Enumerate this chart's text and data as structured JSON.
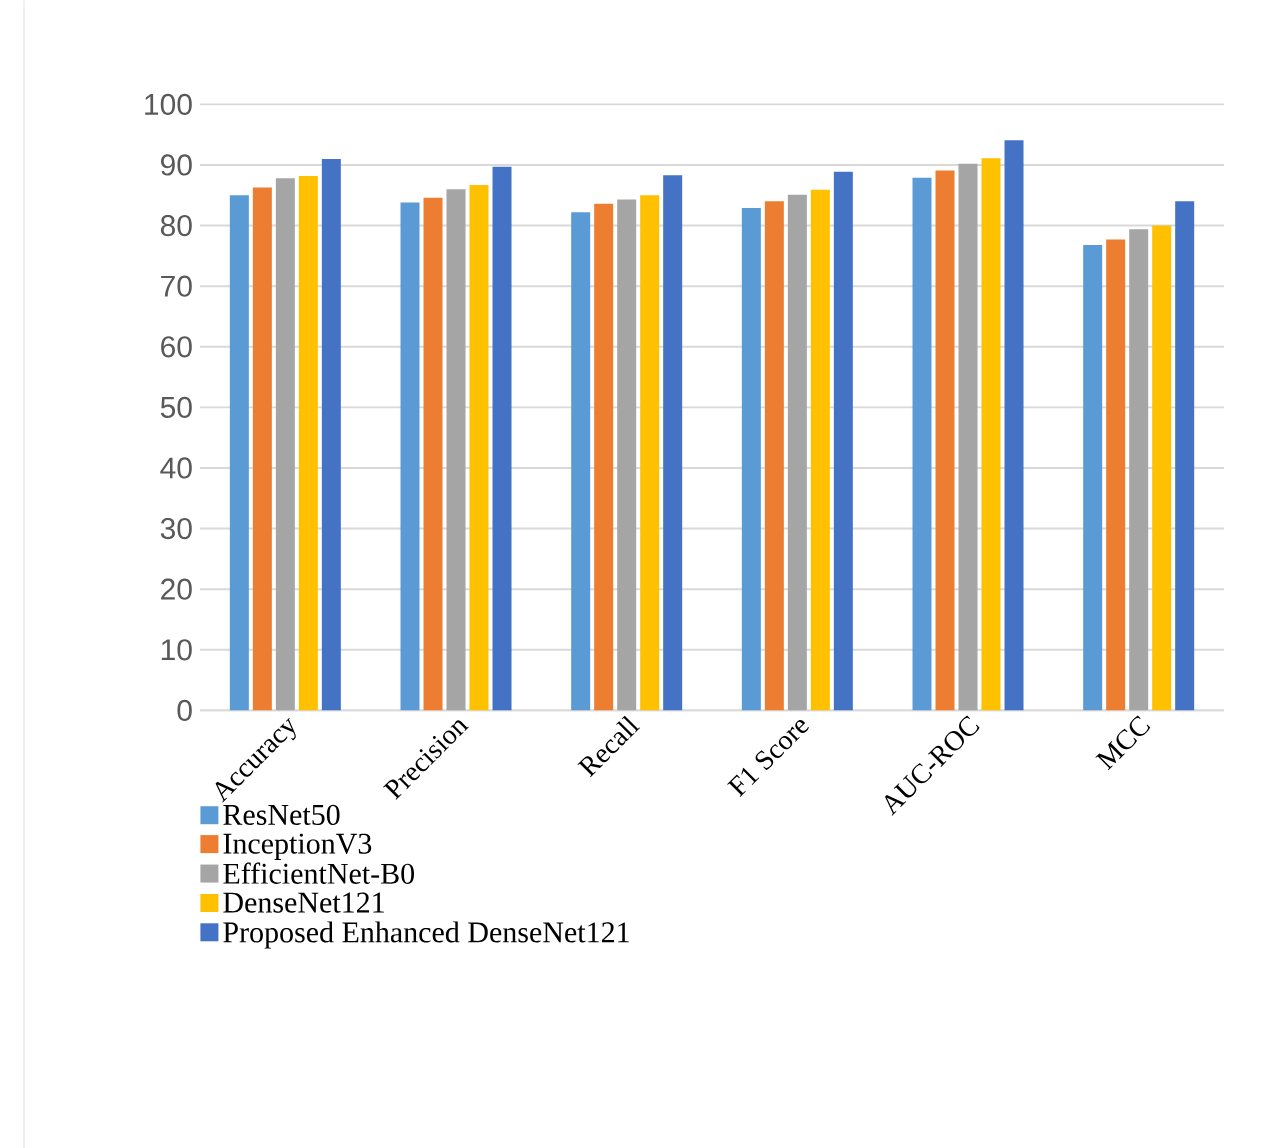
{
  "chart_data": {
    "type": "bar",
    "categories": [
      "Accuracy",
      "Precision",
      "Recall",
      "F1 Score",
      "AUC-ROC",
      "MCC"
    ],
    "series": [
      {
        "name": "ResNet50",
        "color": "#5b9bd5",
        "values": [
          85.0,
          83.8,
          82.2,
          82.9,
          87.9,
          76.8
        ]
      },
      {
        "name": "InceptionV3",
        "color": "#ed7d31",
        "values": [
          86.3,
          84.6,
          83.6,
          84.0,
          89.1,
          77.7
        ]
      },
      {
        "name": "EfficientNet-B0",
        "color": "#a5a5a5",
        "values": [
          87.8,
          86.0,
          84.3,
          85.1,
          90.2,
          79.4
        ]
      },
      {
        "name": "DenseNet121",
        "color": "#ffc000",
        "values": [
          88.2,
          86.7,
          85.0,
          85.9,
          91.1,
          80.0
        ]
      },
      {
        "name": "Proposed Enhanced DenseNet121",
        "color": "#4472c4",
        "values": [
          91.0,
          89.7,
          88.3,
          88.9,
          94.1,
          84.0
        ]
      }
    ],
    "ylim": [
      0,
      100
    ],
    "yticks": [
      0,
      10,
      20,
      30,
      40,
      50,
      60,
      70,
      80,
      90,
      100
    ],
    "grid": "y",
    "legend": "bottom"
  }
}
